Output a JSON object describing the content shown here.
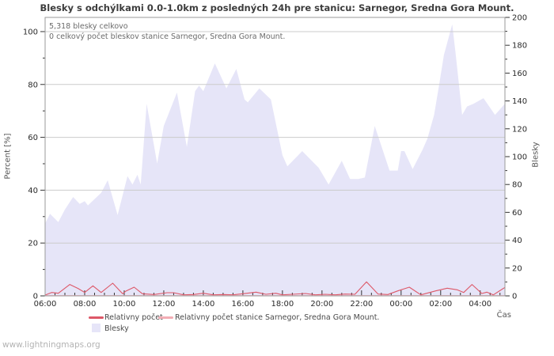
{
  "title": "Blesky s odchýlkami 0.0-1.0km z posledných 24h pre stanicu: Sarnegor, Sredna Gora Mount.",
  "annotations": {
    "total": "5,318 blesky celkovo",
    "station_total": "0 celkový počet bleskov stanice Sarnegor, Sredna Gora Mount."
  },
  "watermark": "www.lightningmaps.org",
  "legend": [
    {
      "label": "Relativny počet",
      "type": "line",
      "color": "#dd5868"
    },
    {
      "label": "Relativny počet stanice Sarnegor, Sredna Gora Mount.",
      "type": "line",
      "color": "#f3adb5"
    },
    {
      "label": "Blesky",
      "type": "area",
      "color": "#e6e5f8"
    }
  ],
  "chart_data": {
    "type": "area",
    "title": "Blesky s odchýlkami 0.0-1.0km z posledných 24h pre stanicu: Sarnegor, Sredna Gora Mount.",
    "x_label": "Čas",
    "grid": true,
    "x_total_minutes": 1395,
    "x_minor_every": 30,
    "x_ticks": [
      {
        "label": "06:00",
        "min": 0
      },
      {
        "label": "08:00",
        "min": 120
      },
      {
        "label": "10:00",
        "min": 240
      },
      {
        "label": "12:00",
        "min": 360
      },
      {
        "label": "14:00",
        "min": 480
      },
      {
        "label": "16:00",
        "min": 600
      },
      {
        "label": "18:00",
        "min": 720
      },
      {
        "label": "20:00",
        "min": 840
      },
      {
        "label": "22:00",
        "min": 960
      },
      {
        "label": "00:00",
        "min": 1080
      },
      {
        "label": "02:00",
        "min": 1200
      },
      {
        "label": "04:00",
        "min": 1320
      }
    ],
    "y_left": {
      "label": "Percent  [%]",
      "min": 0,
      "max": 100,
      "tick_step": 20,
      "minor_step": 10
    },
    "y_right": {
      "label": "Blesky",
      "min": 0,
      "max": 200,
      "tick_step": 20,
      "minor_step": 10
    },
    "series": [
      {
        "name": "Blesky",
        "type": "area",
        "axis": "right",
        "color": "#e6e5f8",
        "points": [
          [
            0,
            52
          ],
          [
            15,
            59
          ],
          [
            40,
            53
          ],
          [
            60,
            62
          ],
          [
            85,
            71
          ],
          [
            105,
            66
          ],
          [
            120,
            68
          ],
          [
            130,
            65
          ],
          [
            170,
            74
          ],
          [
            190,
            83
          ],
          [
            220,
            58
          ],
          [
            250,
            86
          ],
          [
            265,
            80
          ],
          [
            280,
            87
          ],
          [
            290,
            80
          ],
          [
            308,
            138
          ],
          [
            340,
            95
          ],
          [
            360,
            122
          ],
          [
            400,
            146
          ],
          [
            430,
            107
          ],
          [
            455,
            147
          ],
          [
            467,
            151
          ],
          [
            480,
            147
          ],
          [
            515,
            167
          ],
          [
            550,
            149
          ],
          [
            580,
            163
          ],
          [
            605,
            141
          ],
          [
            615,
            139
          ],
          [
            650,
            149
          ],
          [
            685,
            141
          ],
          [
            720,
            101
          ],
          [
            735,
            93
          ],
          [
            780,
            104
          ],
          [
            830,
            92
          ],
          [
            860,
            80
          ],
          [
            900,
            97
          ],
          [
            925,
            84
          ],
          [
            950,
            84
          ],
          [
            970,
            85
          ],
          [
            1000,
            122
          ],
          [
            1045,
            90
          ],
          [
            1070,
            90
          ],
          [
            1080,
            104
          ],
          [
            1090,
            104
          ],
          [
            1115,
            91
          ],
          [
            1145,
            105
          ],
          [
            1160,
            113
          ],
          [
            1180,
            130
          ],
          [
            1195,
            151
          ],
          [
            1210,
            173
          ],
          [
            1235,
            195
          ],
          [
            1245,
            175
          ],
          [
            1255,
            153
          ],
          [
            1265,
            130
          ],
          [
            1280,
            136
          ],
          [
            1300,
            138
          ],
          [
            1330,
            142
          ],
          [
            1365,
            130
          ],
          [
            1395,
            138
          ]
        ]
      },
      {
        "name": "Relativny počet",
        "type": "line",
        "axis": "left",
        "color": "#dd5868",
        "points": [
          [
            0,
            0.3
          ],
          [
            20,
            1.3
          ],
          [
            40,
            1.0
          ],
          [
            75,
            4.3
          ],
          [
            100,
            2.8
          ],
          [
            120,
            1.3
          ],
          [
            145,
            3.8
          ],
          [
            170,
            1.3
          ],
          [
            205,
            4.8
          ],
          [
            235,
            0.8
          ],
          [
            245,
            1.8
          ],
          [
            270,
            3.3
          ],
          [
            295,
            0.8
          ],
          [
            330,
            0.5
          ],
          [
            370,
            1.2
          ],
          [
            390,
            1.2
          ],
          [
            420,
            0.4
          ],
          [
            450,
            0.5
          ],
          [
            480,
            1.0
          ],
          [
            510,
            0.4
          ],
          [
            540,
            0.5
          ],
          [
            570,
            0.4
          ],
          [
            600,
            0.8
          ],
          [
            640,
            1.4
          ],
          [
            670,
            0.6
          ],
          [
            700,
            1.0
          ],
          [
            720,
            0.4
          ],
          [
            750,
            0.6
          ],
          [
            790,
            0.9
          ],
          [
            820,
            0.4
          ],
          [
            850,
            0.6
          ],
          [
            880,
            0.4
          ],
          [
            910,
            0.7
          ],
          [
            940,
            0.6
          ],
          [
            975,
            5.3
          ],
          [
            1010,
            0.7
          ],
          [
            1040,
            0.5
          ],
          [
            1070,
            1.9
          ],
          [
            1105,
            3.3
          ],
          [
            1140,
            0.4
          ],
          [
            1185,
            1.9
          ],
          [
            1220,
            2.9
          ],
          [
            1250,
            2.3
          ],
          [
            1270,
            1.3
          ],
          [
            1295,
            4.3
          ],
          [
            1325,
            0.9
          ],
          [
            1340,
            1.4
          ],
          [
            1360,
            0.4
          ],
          [
            1395,
            3.2
          ]
        ]
      },
      {
        "name": "Relativny počet stanice Sarnegor, Sredna Gora Mount.",
        "type": "line",
        "axis": "left",
        "color": "#f3adb5",
        "points": [
          [
            0,
            0.1
          ],
          [
            1395,
            0.1
          ]
        ]
      }
    ]
  }
}
